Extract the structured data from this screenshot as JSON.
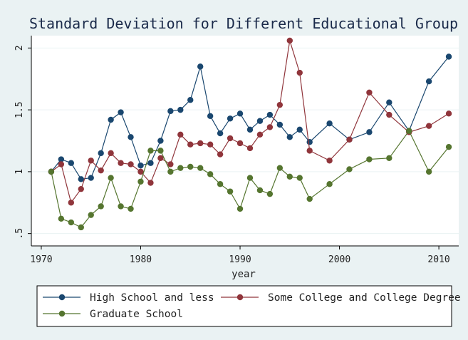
{
  "chart_data": {
    "type": "line",
    "title": "Standard Deviation for Different Educational Group",
    "xlabel": "year",
    "ylabel": "",
    "xlim": [
      1969,
      2012
    ],
    "ylim": [
      0.4,
      2.1
    ],
    "xticks": [
      1970,
      1980,
      1990,
      2000,
      2010
    ],
    "xtick_labels": [
      "1970",
      "1980",
      "1990",
      "2000",
      "2010"
    ],
    "yticks": [
      0.5,
      1,
      1.5,
      2
    ],
    "ytick_labels": [
      ".5",
      "1",
      "1.5",
      "2"
    ],
    "grid": "horizontal",
    "legend_position": "bottom",
    "series": [
      {
        "name": "High School and less",
        "color": "#1a476f",
        "x": [
          1971,
          1972,
          1973,
          1974,
          1975,
          1976,
          1977,
          1978,
          1979,
          1980,
          1981,
          1982,
          1983,
          1984,
          1985,
          1986,
          1987,
          1988,
          1989,
          1990,
          1991,
          1992,
          1993,
          1994,
          1995,
          1996,
          1997,
          1999,
          2001,
          2003,
          2005,
          2007,
          2009,
          2011
        ],
        "values": [
          1.0,
          1.1,
          1.07,
          0.94,
          0.95,
          1.15,
          1.42,
          1.48,
          1.28,
          1.05,
          1.07,
          1.25,
          1.49,
          1.5,
          1.58,
          1.85,
          1.45,
          1.31,
          1.43,
          1.47,
          1.34,
          1.41,
          1.46,
          1.38,
          1.28,
          1.34,
          1.24,
          1.39,
          1.26,
          1.32,
          1.56,
          1.33,
          1.73,
          1.93
        ]
      },
      {
        "name": "Some College and College Degree",
        "color": "#90353b",
        "x": [
          1971,
          1972,
          1973,
          1974,
          1975,
          1976,
          1977,
          1978,
          1979,
          1980,
          1981,
          1982,
          1983,
          1984,
          1985,
          1986,
          1987,
          1988,
          1989,
          1990,
          1991,
          1992,
          1993,
          1994,
          1995,
          1996,
          1997,
          1999,
          2001,
          2003,
          2005,
          2007,
          2009,
          2011
        ],
        "values": [
          1.0,
          1.06,
          0.75,
          0.86,
          1.09,
          1.01,
          1.15,
          1.07,
          1.06,
          1.0,
          0.91,
          1.11,
          1.06,
          1.3,
          1.22,
          1.23,
          1.22,
          1.14,
          1.27,
          1.23,
          1.19,
          1.3,
          1.36,
          1.54,
          2.06,
          1.8,
          1.17,
          1.09,
          1.26,
          1.64,
          1.46,
          1.32,
          1.37,
          1.47
        ]
      },
      {
        "name": "Graduate School",
        "color": "#55752f",
        "x": [
          1971,
          1972,
          1973,
          1974,
          1975,
          1976,
          1977,
          1978,
          1979,
          1980,
          1981,
          1982,
          1983,
          1984,
          1985,
          1986,
          1987,
          1988,
          1989,
          1990,
          1991,
          1992,
          1993,
          1994,
          1995,
          1996,
          1997,
          1999,
          2001,
          2003,
          2005,
          2007,
          2009,
          2011
        ],
        "values": [
          1.0,
          0.62,
          0.59,
          0.55,
          0.65,
          0.72,
          0.95,
          0.72,
          0.7,
          0.92,
          1.17,
          1.17,
          1.0,
          1.03,
          1.04,
          1.03,
          0.98,
          0.9,
          0.84,
          0.7,
          0.95,
          0.85,
          0.82,
          1.03,
          0.96,
          0.95,
          0.78,
          0.9,
          1.02,
          1.1,
          1.11,
          1.33,
          1.0,
          1.2
        ]
      }
    ]
  }
}
